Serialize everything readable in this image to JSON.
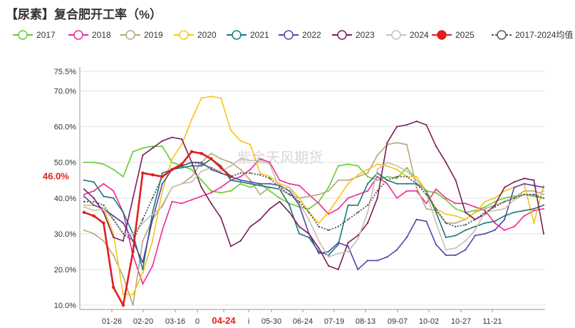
{
  "title": "【尿素】复合肥开工率（%）",
  "watermark": "紫金天风期货",
  "chart_data": {
    "type": "line",
    "y_unit": "%",
    "ylim": [
      10,
      75.5
    ],
    "yticks": [
      "75.5%",
      "70.0%",
      "60.0%",
      "50.0%",
      "40.0%",
      "30.0%",
      "20.0%",
      "10.0%"
    ],
    "x_ticks": [
      "01-26",
      "02-20",
      "03-16",
      "0",
      "04-24",
      "i",
      "05-30",
      "06-24",
      "07-19",
      "08-13",
      "09-07",
      "10-02",
      "10-27",
      "11-21"
    ],
    "highlight_x_tick": "04-24",
    "current_value_label": "46.0%",
    "grid": true,
    "legend_position": "top",
    "series": [
      {
        "name": "2017",
        "color": "#66cc33",
        "marker": "open-circle",
        "values": [
          50,
          50,
          49.5,
          48,
          46,
          53,
          54,
          54.5,
          54.5,
          50,
          49,
          48,
          45,
          42,
          41.5,
          42,
          44,
          43,
          44,
          42,
          40,
          38.5,
          37.5,
          37,
          39,
          43,
          49,
          49.5,
          49,
          46,
          45,
          46,
          45.5,
          48.5,
          45,
          42,
          41.5,
          39.5,
          37,
          36,
          36.5,
          37.5,
          39,
          40,
          40.5,
          41,
          40.5,
          40
        ]
      },
      {
        "name": "2018",
        "color": "#ee2a9a",
        "marker": "open-circle",
        "values": [
          41,
          42,
          44,
          42,
          36,
          24,
          16,
          21,
          31,
          39,
          38.5,
          39.5,
          40.5,
          41.5,
          43,
          45,
          46,
          48,
          51,
          50,
          45,
          44,
          43.5,
          41,
          38.5,
          35.5,
          37,
          40,
          41,
          42,
          46,
          44,
          40,
          42,
          42,
          38.5,
          42.5,
          40,
          38.5,
          38.5,
          37.5,
          36.5,
          33,
          31,
          32,
          35,
          36.5,
          37
        ]
      },
      {
        "name": "2019",
        "color": "#b8a878",
        "marker": "open-circle",
        "values": [
          31,
          30,
          28,
          24,
          18,
          10,
          28,
          34,
          38,
          43,
          44,
          46,
          50,
          52.5,
          51,
          50,
          48,
          45,
          41,
          43,
          42.5,
          41,
          40,
          40.5,
          41,
          42,
          45,
          45,
          46,
          47,
          52,
          55,
          55.5,
          55,
          43,
          37,
          36.5,
          33,
          33,
          34,
          36,
          37,
          38,
          39,
          40,
          42,
          42,
          41
        ]
      },
      {
        "name": "2020",
        "color": "#f5c518",
        "marker": "open-circle",
        "values": [
          38,
          38,
          37,
          30,
          13,
          13,
          19,
          28,
          42,
          51,
          55,
          62,
          68,
          68.5,
          68,
          59,
          56,
          55,
          47,
          46,
          44,
          43,
          40,
          36,
          33,
          36,
          40,
          44,
          46.5,
          48,
          49.5,
          49,
          48,
          46,
          46,
          42,
          37,
          35.5,
          35,
          34,
          36,
          39,
          40,
          42,
          43,
          44,
          33,
          43.5
        ]
      },
      {
        "name": "2021",
        "color": "#1a7a78",
        "marker": "open-circle",
        "values": [
          45,
          44.5,
          40.5,
          40,
          36,
          30,
          20,
          36,
          47,
          48,
          48.5,
          49,
          49,
          51,
          49,
          45,
          44.5,
          44,
          43.5,
          43,
          42.5,
          38,
          30,
          29,
          25,
          24,
          27,
          38,
          38,
          44,
          47,
          45,
          44,
          44,
          44,
          42,
          36,
          29,
          29.5,
          31,
          32,
          33,
          33.5,
          35,
          36,
          36.5,
          37,
          38
        ]
      },
      {
        "name": "2022",
        "color": "#5544aa",
        "marker": "open-circle",
        "values": [
          40.5,
          38,
          37,
          35,
          33,
          28,
          22,
          34,
          44,
          48,
          49,
          50,
          50,
          48,
          47,
          46,
          45,
          44.5,
          44,
          44,
          43.5,
          42,
          38,
          30,
          24.5,
          25,
          27.5,
          26.5,
          20,
          22.5,
          22.5,
          23.5,
          25.5,
          29,
          34,
          33.5,
          27,
          24,
          24,
          25.5,
          29.5,
          30,
          31,
          34,
          43,
          44,
          43.5,
          43
        ]
      },
      {
        "name": "2023",
        "color": "#7a1e5a",
        "marker": "open-circle",
        "values": [
          42.5,
          40,
          36,
          29,
          28,
          40,
          52,
          54,
          56,
          57,
          56.5,
          50,
          43,
          38.5,
          34.5,
          26.5,
          28,
          32,
          34,
          37,
          39,
          36,
          32,
          30,
          26,
          21,
          20,
          27.5,
          29.5,
          33,
          40,
          55.5,
          60,
          60.5,
          61.5,
          60.5,
          54.5,
          50,
          45,
          36,
          34,
          35.5,
          38,
          43,
          44.5,
          45.5,
          45,
          30
        ]
      },
      {
        "name": "2024",
        "color": "#c8c0b0",
        "marker": "open-circle",
        "values": [
          37.5,
          36.5,
          37,
          34,
          30,
          30,
          33,
          35.5,
          37.5,
          43,
          44,
          44.5,
          47.5,
          48.5,
          47.5,
          49,
          51,
          50.5,
          50.5,
          49.5,
          42.5,
          43,
          38.5,
          34,
          28,
          23.5,
          24.5,
          25,
          28.5,
          36,
          48,
          50,
          49,
          47.5,
          45,
          41.5,
          33,
          25.5,
          26,
          28,
          31,
          36,
          36.5,
          37,
          39.5,
          41,
          41,
          42
        ]
      },
      {
        "name": "2025",
        "color": "#e01f1f",
        "marker": "filled-circle",
        "values": [
          36,
          35,
          33,
          15,
          10,
          25,
          47,
          46.5,
          46,
          48,
          49.5,
          53,
          52.5,
          51,
          48.5,
          46
        ]
      },
      {
        "name": "2017-2024均值",
        "color": "#555555",
        "marker": "open-circle",
        "dashed": true,
        "values": [
          39,
          39,
          38,
          34,
          30,
          28,
          34,
          40,
          46,
          48,
          49,
          50,
          49.5,
          48.5,
          47,
          46,
          47,
          47,
          46.5,
          45.5,
          43,
          41,
          39,
          36,
          32,
          31,
          32,
          34,
          36,
          38,
          42,
          45,
          46,
          46,
          44,
          41,
          37,
          33,
          32,
          32.5,
          34,
          36,
          37.5,
          39,
          40,
          41,
          41,
          40
        ]
      }
    ]
  }
}
